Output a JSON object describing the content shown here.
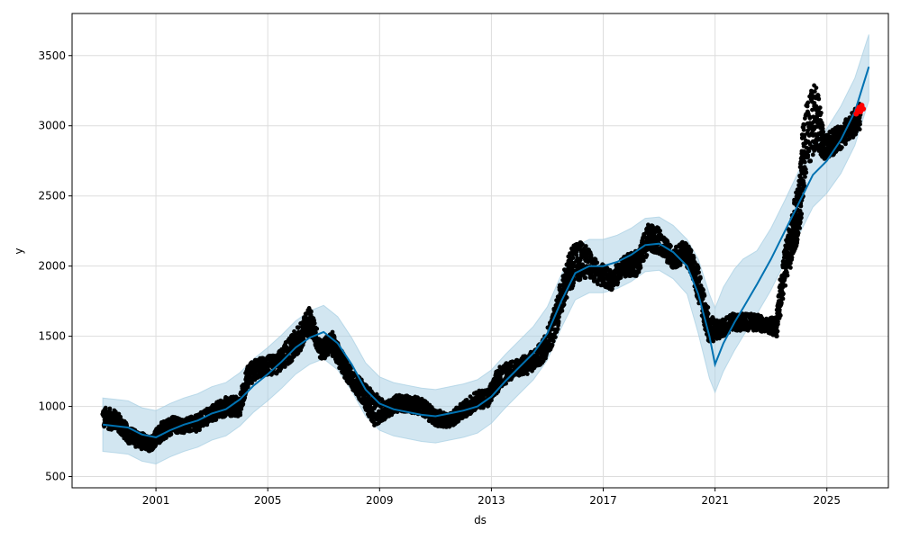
{
  "chart_data": {
    "type": "scatter",
    "xlabel": "ds",
    "ylabel": "y",
    "grid": true,
    "xlim": [
      1998.0,
      2027.2
    ],
    "ylim": [
      420,
      3800
    ],
    "x_ticks": [
      "2001",
      "2005",
      "2009",
      "2013",
      "2017",
      "2021",
      "2025"
    ],
    "y_ticks": [
      "500",
      "1000",
      "1500",
      "2000",
      "2500",
      "3000",
      "3500"
    ],
    "colors": {
      "observed": "#000000",
      "forecast": "#0072B2",
      "uncertainty": "#a6cee3",
      "recent": "#ff0000",
      "grid": "#dddddd"
    },
    "forecast": {
      "x": [
        1999.1,
        2000.0,
        2000.5,
        2001.0,
        2001.5,
        2002.0,
        2002.5,
        2003.0,
        2003.5,
        2004.0,
        2004.5,
        2005.0,
        2005.5,
        2006.0,
        2006.5,
        2007.0,
        2007.5,
        2008.0,
        2008.5,
        2009.0,
        2009.5,
        2010.0,
        2010.5,
        2011.0,
        2011.5,
        2012.0,
        2012.5,
        2013.0,
        2013.5,
        2014.0,
        2014.5,
        2015.0,
        2015.5,
        2016.0,
        2016.5,
        2017.0,
        2017.5,
        2018.0,
        2018.5,
        2019.0,
        2019.5,
        2020.0,
        2020.4,
        2020.8,
        2021.0,
        2021.3,
        2021.7,
        2022.0,
        2022.5,
        2023.0,
        2023.5,
        2024.0,
        2024.5,
        2025.0,
        2025.5,
        2026.0,
        2026.5
      ],
      "y": [
        870,
        850,
        800,
        780,
        830,
        870,
        900,
        950,
        980,
        1050,
        1150,
        1230,
        1320,
        1420,
        1490,
        1530,
        1450,
        1300,
        1120,
        1020,
        980,
        960,
        940,
        930,
        950,
        970,
        1000,
        1070,
        1180,
        1280,
        1380,
        1520,
        1750,
        1950,
        2000,
        2000,
        2030,
        2080,
        2150,
        2160,
        2100,
        2000,
        1800,
        1500,
        1300,
        1450,
        1600,
        1700,
        1870,
        2050,
        2250,
        2450,
        2650,
        2750,
        2900,
        3100,
        3420
      ],
      "lower": [
        680,
        660,
        610,
        590,
        640,
        680,
        710,
        760,
        790,
        860,
        960,
        1040,
        1130,
        1230,
        1300,
        1340,
        1260,
        1110,
        930,
        830,
        790,
        770,
        750,
        740,
        760,
        780,
        810,
        880,
        990,
        1090,
        1190,
        1330,
        1560,
        1760,
        1810,
        1810,
        1840,
        1890,
        1960,
        1970,
        1910,
        1800,
        1520,
        1200,
        1100,
        1250,
        1400,
        1500,
        1660,
        1830,
        2030,
        2220,
        2420,
        2520,
        2660,
        2860,
        3180
      ],
      "upper": [
        1060,
        1040,
        990,
        970,
        1020,
        1060,
        1090,
        1140,
        1170,
        1240,
        1340,
        1420,
        1510,
        1610,
        1680,
        1720,
        1640,
        1490,
        1310,
        1210,
        1170,
        1150,
        1130,
        1120,
        1140,
        1160,
        1190,
        1260,
        1370,
        1470,
        1570,
        1710,
        1940,
        2140,
        2190,
        2190,
        2220,
        2270,
        2340,
        2350,
        2290,
        2190,
        2050,
        1800,
        1700,
        1850,
        1980,
        2050,
        2110,
        2270,
        2470,
        2680,
        2880,
        2980,
        3140,
        3340,
        3650
      ]
    },
    "observed_anchors": {
      "x": [
        1999.1,
        1999.6,
        2000.0,
        2000.4,
        2000.8,
        2001.2,
        2001.6,
        2002.0,
        2002.5,
        2003.0,
        2003.5,
        2004.0,
        2004.3,
        2004.8,
        2005.3,
        2005.8,
        2006.2,
        2006.5,
        2006.9,
        2007.3,
        2007.7,
        2008.0,
        2008.4,
        2008.8,
        2009.2,
        2009.6,
        2010.0,
        2010.5,
        2011.0,
        2011.5,
        2012.0,
        2012.5,
        2012.9,
        2013.3,
        2013.8,
        2014.3,
        2014.8,
        2015.2,
        2015.6,
        2015.9,
        2016.3,
        2016.8,
        2017.3,
        2017.8,
        2018.2,
        2018.6,
        2019.0,
        2019.5,
        2019.9,
        2020.1,
        2020.4,
        2020.8,
        2021.2,
        2021.6,
        2022.0,
        2022.5,
        2022.9,
        2023.2,
        2023.5,
        2023.8,
        2024.0,
        2024.2,
        2024.6,
        2024.9,
        2025.2,
        2025.5,
        2025.9,
        2026.2
      ],
      "y": [
        920,
        900,
        800,
        760,
        730,
        820,
        870,
        860,
        880,
        950,
        1000,
        1000,
        1230,
        1280,
        1300,
        1400,
        1500,
        1620,
        1400,
        1450,
        1300,
        1200,
        1100,
        980,
        970,
        1020,
        1020,
        1000,
        920,
        900,
        970,
        1050,
        1060,
        1210,
        1270,
        1300,
        1380,
        1550,
        1850,
        2000,
        2050,
        1950,
        1900,
        2000,
        2020,
        2200,
        2180,
        2050,
        2100,
        2050,
        1870,
        1550,
        1550,
        1600,
        1600,
        1600,
        1570,
        1580,
        2000,
        2250,
        2400,
        2850,
        3100,
        2850,
        2880,
        2920,
        3000,
        3070
      ],
      "spread": [
        80,
        70,
        60,
        60,
        50,
        70,
        60,
        50,
        60,
        60,
        70,
        70,
        80,
        70,
        70,
        90,
        100,
        100,
        70,
        80,
        80,
        70,
        80,
        120,
        60,
        60,
        60,
        60,
        60,
        50,
        60,
        60,
        70,
        80,
        60,
        70,
        80,
        120,
        120,
        150,
        130,
        80,
        70,
        80,
        90,
        100,
        90,
        70,
        80,
        80,
        120,
        100,
        60,
        60,
        60,
        60,
        50,
        80,
        150,
        180,
        200,
        280,
        250,
        90,
        90,
        90,
        90,
        90
      ]
    },
    "recent_points": {
      "x": [
        2026.05,
        2026.1,
        2026.15,
        2026.2,
        2026.25,
        2026.3
      ],
      "y": [
        3085,
        3110,
        3130,
        3100,
        3145,
        3120
      ]
    }
  }
}
